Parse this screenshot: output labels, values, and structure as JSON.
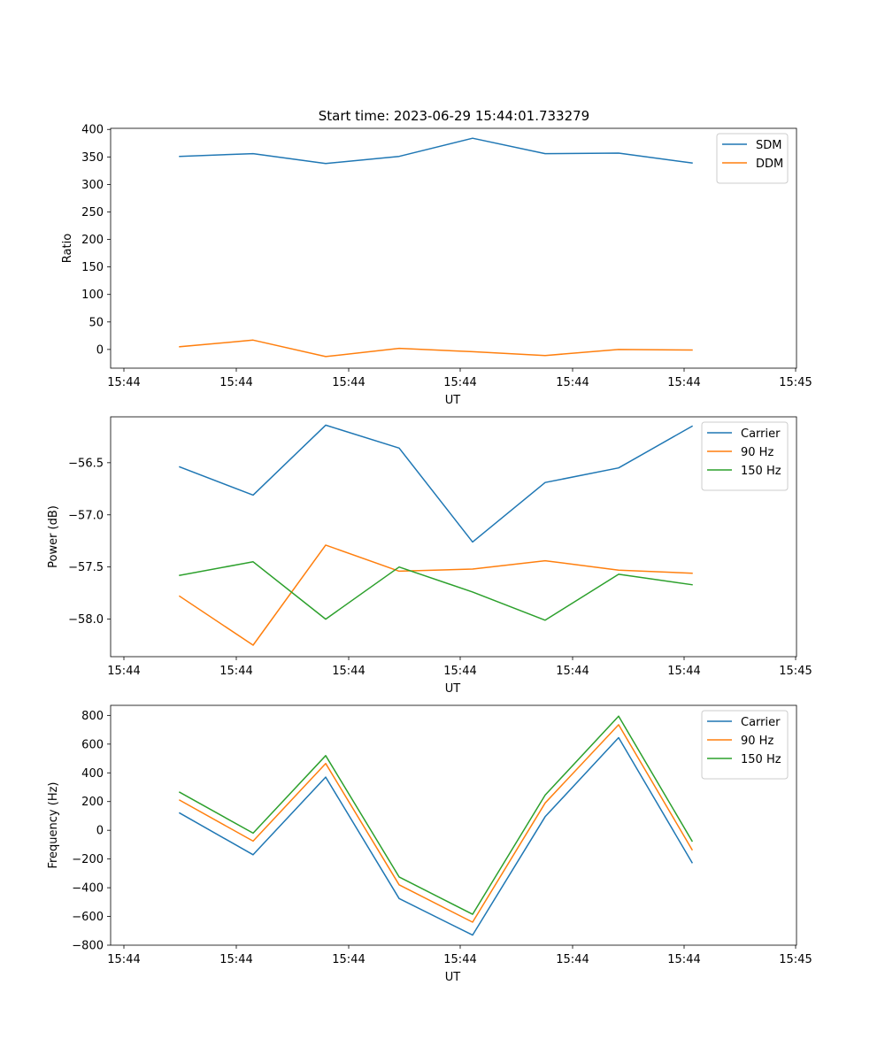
{
  "figure": {
    "title": "Start time: 2023-06-29 15:44:01.733279"
  },
  "colors": {
    "blue": "#1f77b4",
    "orange": "#ff7f0e",
    "green": "#2ca02c"
  },
  "chart_data": [
    {
      "type": "line",
      "xlabel": "UT",
      "ylabel": "Ratio",
      "x_ticks": [
        "15:44",
        "15:44",
        "15:44",
        "15:44",
        "15:44",
        "15:44",
        "15:44"
      ],
      "x_tick_end": "15:45",
      "y_ticks": [
        "0",
        "50",
        "100",
        "150",
        "200",
        "250",
        "300",
        "350",
        "400"
      ],
      "ylim": [
        -34,
        402
      ],
      "legend_position": "upper right",
      "series": [
        {
          "name": "SDM",
          "color": "#1f77b4",
          "values": [
            351,
            356,
            338,
            351,
            384,
            356,
            357,
            339
          ]
        },
        {
          "name": "DDM",
          "color": "#ff7f0e",
          "values": [
            5,
            17,
            -13,
            2,
            -4,
            -11,
            0,
            -1
          ]
        }
      ]
    },
    {
      "type": "line",
      "xlabel": "UT",
      "ylabel": "Power (dB)",
      "x_ticks": [
        "15:44",
        "15:44",
        "15:44",
        "15:44",
        "15:44",
        "15:44",
        "15:44"
      ],
      "x_tick_end": "15:45",
      "y_ticks": [
        "−58.0",
        "−57.5",
        "−57.0",
        "−56.5"
      ],
      "y_tick_values": [
        -58.0,
        -57.5,
        -57.0,
        -56.5
      ],
      "ylim": [
        -58.36,
        -56.06
      ],
      "legend_position": "upper right",
      "series": [
        {
          "name": "Carrier",
          "color": "#1f77b4",
          "values": [
            -56.54,
            -56.81,
            -56.14,
            -56.36,
            -57.26,
            -56.69,
            -56.55,
            -56.15
          ]
        },
        {
          "name": "90 Hz",
          "color": "#ff7f0e",
          "values": [
            -57.78,
            -58.25,
            -57.29,
            -57.54,
            -57.52,
            -57.44,
            -57.53,
            -57.56
          ]
        },
        {
          "name": "150 Hz",
          "color": "#2ca02c",
          "values": [
            -57.58,
            -57.45,
            -58.0,
            -57.5,
            -57.74,
            -58.01,
            -57.57,
            -57.67
          ]
        }
      ]
    },
    {
      "type": "line",
      "xlabel": "UT",
      "ylabel": "Frequency (Hz)",
      "x_ticks": [
        "15:44",
        "15:44",
        "15:44",
        "15:44",
        "15:44",
        "15:44",
        "15:44"
      ],
      "x_tick_end": "15:45",
      "y_ticks": [
        "−800",
        "−600",
        "−400",
        "−200",
        "0",
        "200",
        "400",
        "600",
        "800"
      ],
      "y_tick_values": [
        -800,
        -600,
        -400,
        -200,
        0,
        200,
        400,
        600,
        800
      ],
      "ylim": [
        -800,
        870
      ],
      "legend_position": "upper right",
      "series": [
        {
          "name": "Carrier",
          "color": "#1f77b4",
          "values": [
            120,
            -170,
            370,
            -475,
            -730,
            95,
            645,
            -225
          ]
        },
        {
          "name": "90 Hz",
          "color": "#ff7f0e",
          "values": [
            210,
            -75,
            465,
            -380,
            -640,
            190,
            735,
            -135
          ]
        },
        {
          "name": "150 Hz",
          "color": "#2ca02c",
          "values": [
            265,
            -20,
            520,
            -325,
            -585,
            245,
            795,
            -75
          ]
        }
      ]
    }
  ]
}
